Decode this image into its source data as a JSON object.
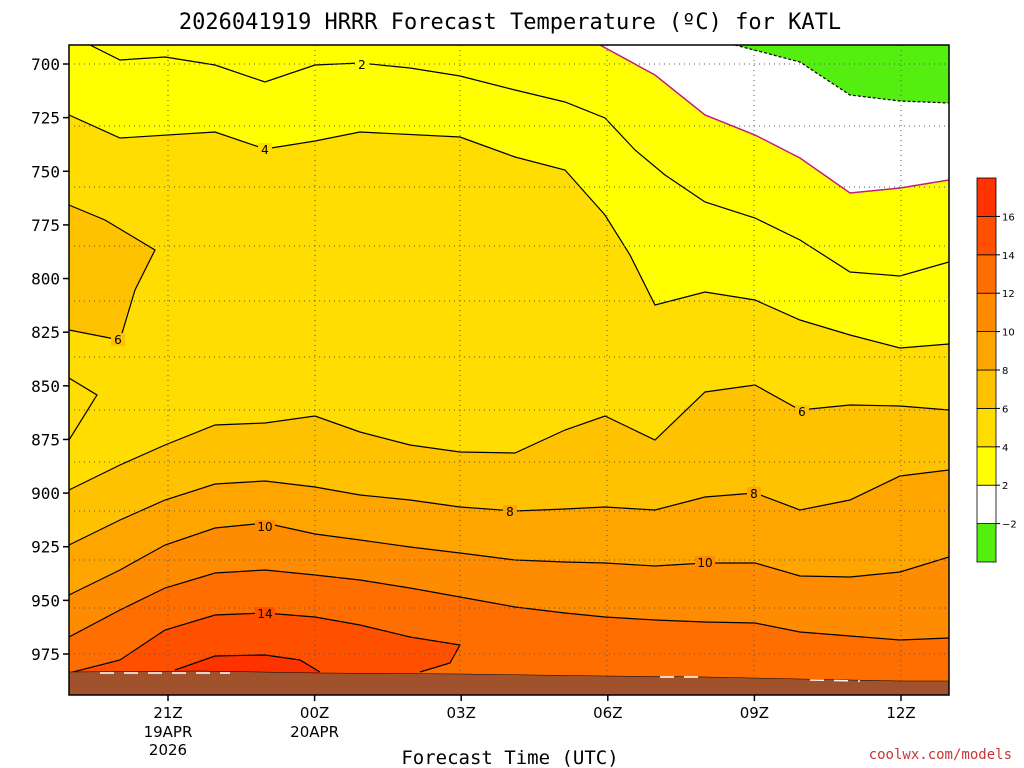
{
  "chart_data": {
    "type": "contour",
    "title": "2026041919 HRRR Forecast Temperature (ºC) for KATL",
    "xlabel": "Forecast Time (UTC)",
    "ylabel": "",
    "credit": "coolwx.com/models",
    "y_axis": {
      "ticks": [
        700,
        725,
        750,
        775,
        800,
        825,
        850,
        875,
        900,
        925,
        950,
        975
      ],
      "range": [
        695,
        1002
      ],
      "inverted": true,
      "grid": true
    },
    "x_axis": {
      "range": [
        "2026-04-19 19Z",
        "2026-04-20 13Z"
      ],
      "ticks": [
        {
          "label": "21Z",
          "date": "19APR",
          "year": "2026"
        },
        {
          "label": "00Z",
          "date": "20APR",
          "year": ""
        },
        {
          "label": "03Z",
          "date": "",
          "year": ""
        },
        {
          "label": "06Z",
          "date": "",
          "year": ""
        },
        {
          "label": "09Z",
          "date": "",
          "year": ""
        },
        {
          "label": "12Z",
          "date": "",
          "year": ""
        }
      ],
      "grid": true
    },
    "colorbar": {
      "levels": [
        -2,
        2,
        4,
        6,
        8,
        10,
        12,
        14,
        16
      ],
      "colors": [
        "#55ee11",
        "#ffffff",
        "#ffff00",
        "#ffdd00",
        "#ffc200",
        "#ffa500",
        "#ff8c00",
        "#ff6e00",
        "#ff5000",
        "#ff3300"
      ]
    },
    "contour_labels": [
      "2",
      "4",
      "6",
      "6",
      "8",
      "8",
      "10",
      "10",
      "14"
    ],
    "ground_color": "#a0522d"
  }
}
